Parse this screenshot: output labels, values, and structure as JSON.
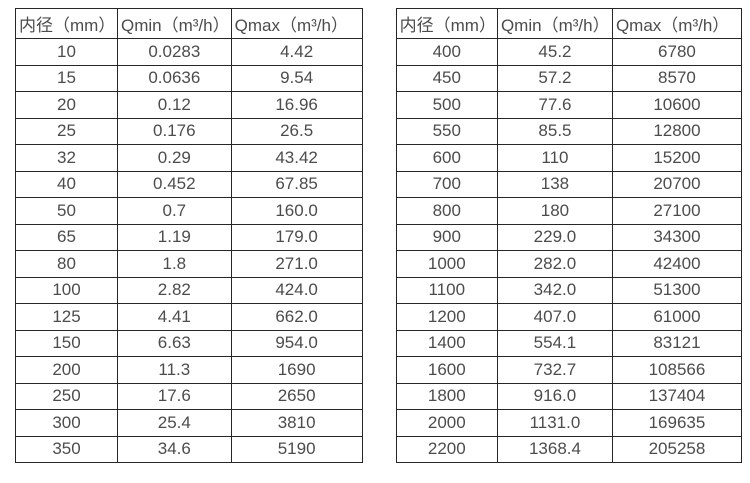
{
  "colors": {
    "border": "#262626",
    "text": "#4c4c4c",
    "background": "#ffffff"
  },
  "tables": [
    {
      "name": "flow-table-small-diameters",
      "headers": [
        "内径（mm）",
        "Qmin（m³/h）",
        "Qmax（m³/h）"
      ],
      "rows": [
        [
          "10",
          "0.0283",
          "4.42"
        ],
        [
          "15",
          "0.0636",
          "9.54"
        ],
        [
          "20",
          "0.12",
          "16.96"
        ],
        [
          "25",
          "0.176",
          "26.5"
        ],
        [
          "32",
          "0.29",
          "43.42"
        ],
        [
          "40",
          "0.452",
          "67.85"
        ],
        [
          "50",
          "0.7",
          "160.0"
        ],
        [
          "65",
          "1.19",
          "179.0"
        ],
        [
          "80",
          "1.8",
          "271.0"
        ],
        [
          "100",
          "2.82",
          "424.0"
        ],
        [
          "125",
          "4.41",
          "662.0"
        ],
        [
          "150",
          "6.63",
          "954.0"
        ],
        [
          "200",
          "11.3",
          "1690"
        ],
        [
          "250",
          "17.6",
          "2650"
        ],
        [
          "300",
          "25.4",
          "3810"
        ],
        [
          "350",
          "34.6",
          "5190"
        ]
      ]
    },
    {
      "name": "flow-table-large-diameters",
      "headers": [
        "内径（mm）",
        "Qmin（m³/h）",
        "Qmax（m³/h）"
      ],
      "rows": [
        [
          "400",
          "45.2",
          "6780"
        ],
        [
          "450",
          "57.2",
          "8570"
        ],
        [
          "500",
          "77.6",
          "10600"
        ],
        [
          "550",
          "85.5",
          "12800"
        ],
        [
          "600",
          "110",
          "15200"
        ],
        [
          "700",
          "138",
          "20700"
        ],
        [
          "800",
          "180",
          "27100"
        ],
        [
          "900",
          "229.0",
          "34300"
        ],
        [
          "1000",
          "282.0",
          "42400"
        ],
        [
          "1100",
          "342.0",
          "51300"
        ],
        [
          "1200",
          "407.0",
          "61000"
        ],
        [
          "1400",
          "554.1",
          "83121"
        ],
        [
          "1600",
          "732.7",
          "108566"
        ],
        [
          "1800",
          "916.0",
          "137404"
        ],
        [
          "2000",
          "1131.0",
          "169635"
        ],
        [
          "2200",
          "1368.4",
          "205258"
        ]
      ]
    }
  ]
}
